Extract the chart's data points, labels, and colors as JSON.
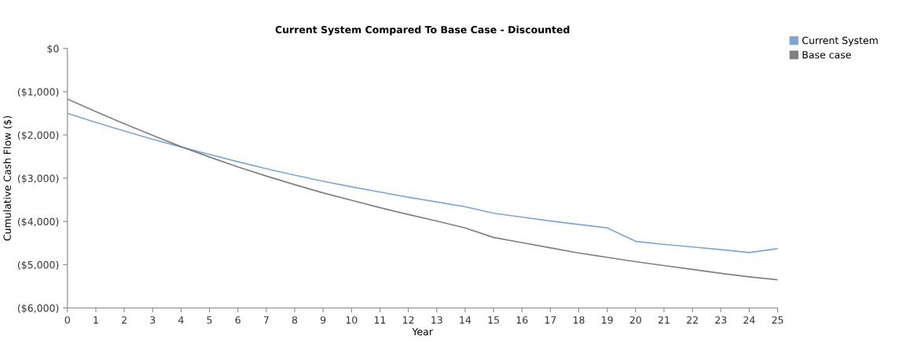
{
  "chart_data": {
    "type": "line",
    "title": "Current System Compared To Base Case - Discounted",
    "xlabel": "Year",
    "ylabel": "Cumulative Cash Flow ($)",
    "x": [
      0,
      1,
      2,
      3,
      4,
      5,
      6,
      7,
      8,
      9,
      10,
      11,
      12,
      13,
      14,
      15,
      16,
      17,
      18,
      19,
      20,
      21,
      22,
      23,
      24,
      25
    ],
    "series": [
      {
        "name": "Current System",
        "color": "#7ea6d3",
        "values": [
          -1500,
          -1710,
          -1910,
          -2100,
          -2280,
          -2450,
          -2620,
          -2780,
          -2930,
          -3070,
          -3200,
          -3320,
          -3440,
          -3550,
          -3660,
          -3810,
          -3900,
          -3990,
          -4070,
          -4150,
          -4460,
          -4530,
          -4590,
          -4650,
          -4720,
          -4630
        ]
      },
      {
        "name": "Base case",
        "color": "#808080",
        "values": [
          -1170,
          -1460,
          -1740,
          -2010,
          -2270,
          -2510,
          -2740,
          -2950,
          -3150,
          -3340,
          -3510,
          -3680,
          -3840,
          -3990,
          -4150,
          -4370,
          -4490,
          -4610,
          -4730,
          -4830,
          -4930,
          -5020,
          -5110,
          -5200,
          -5280,
          -5350
        ]
      }
    ],
    "xlim": [
      0,
      25
    ],
    "xticks": [
      0,
      1,
      2,
      3,
      4,
      5,
      6,
      7,
      8,
      9,
      10,
      11,
      12,
      13,
      14,
      15,
      16,
      17,
      18,
      19,
      20,
      21,
      22,
      23,
      24,
      25
    ],
    "ylim": [
      -6000,
      0
    ],
    "yticks": [
      {
        "value": -6000,
        "label": "($6,000)"
      },
      {
        "value": -5000,
        "label": "($5,000)"
      },
      {
        "value": -4000,
        "label": "($4,000)"
      },
      {
        "value": -3000,
        "label": "($3,000)"
      },
      {
        "value": -2000,
        "label": "($2,000)"
      },
      {
        "value": -1000,
        "label": "($1,000)"
      },
      {
        "value": 0,
        "label": "$0"
      }
    ],
    "grid": false,
    "legend": "top right",
    "marker": "none",
    "line_style": "solid"
  }
}
